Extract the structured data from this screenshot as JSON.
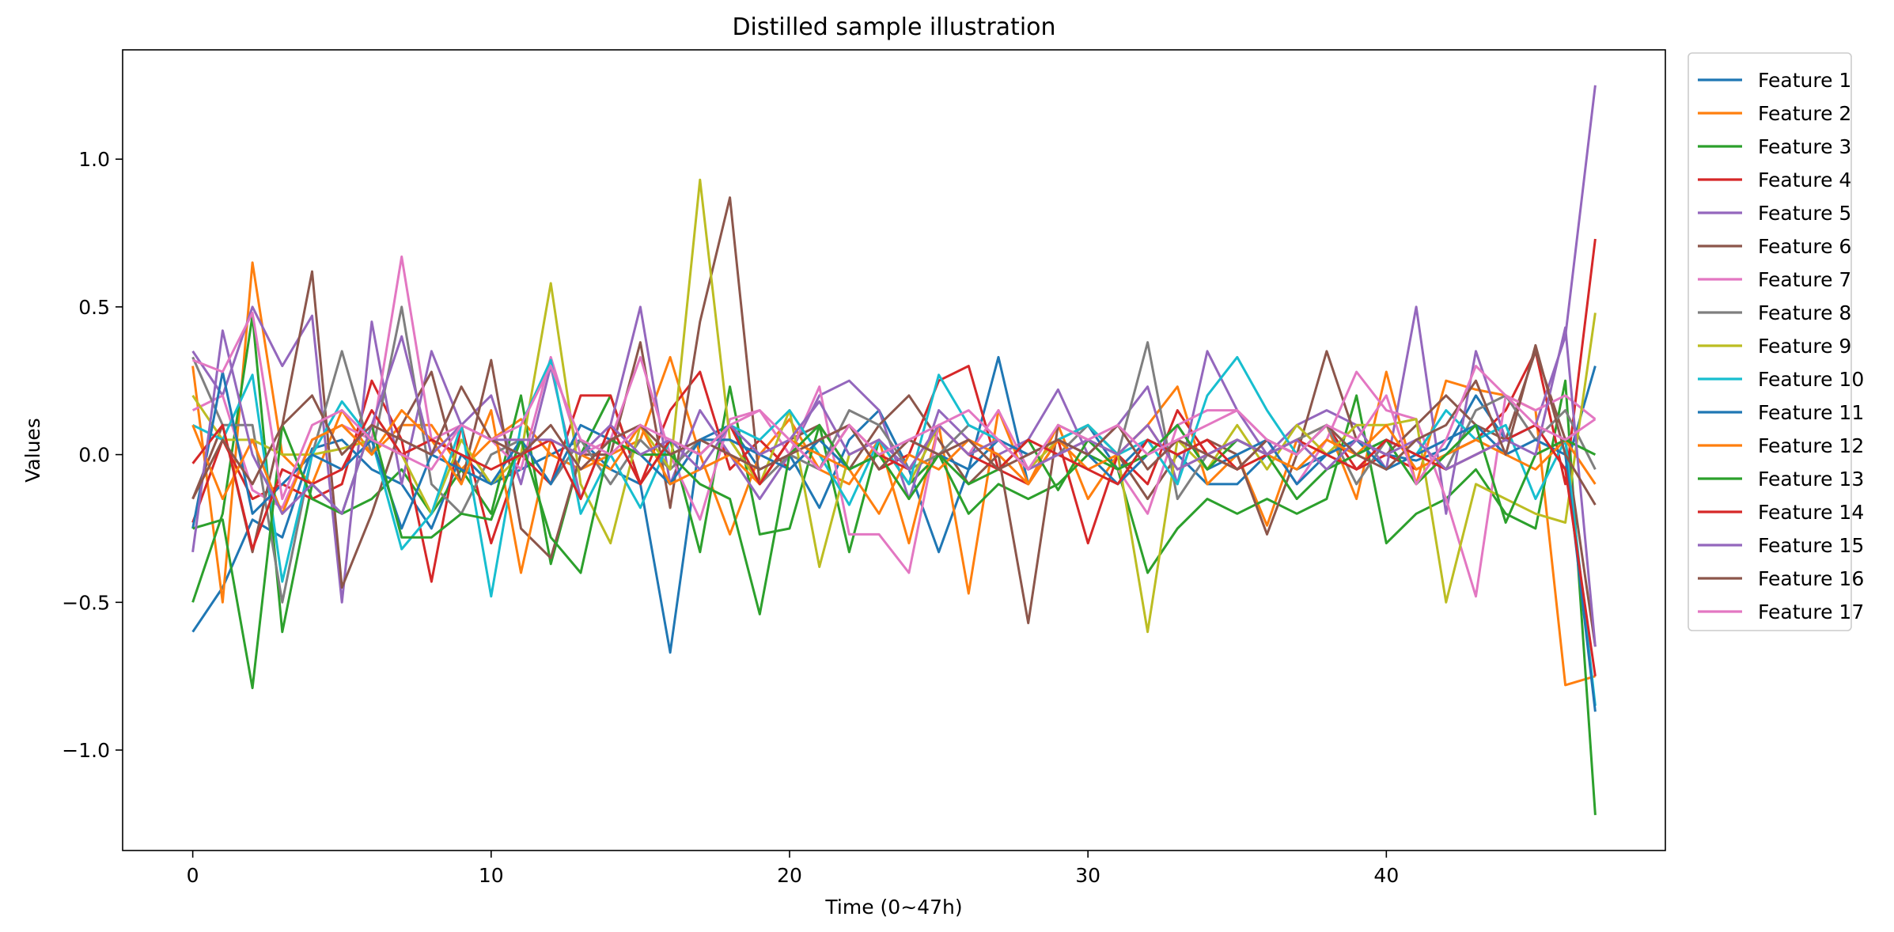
{
  "chart_data": {
    "type": "line",
    "title": "Distilled sample illustration",
    "xlabel": "Time (0~47h)",
    "ylabel": "Values",
    "xlim": [
      -2.35,
      49.35
    ],
    "ylim": [
      -1.34,
      1.37
    ],
    "x_ticks": [
      0,
      10,
      20,
      30,
      40
    ],
    "x_tick_labels": [
      "0",
      "10",
      "20",
      "30",
      "40"
    ],
    "y_ticks": [
      -1.0,
      -0.5,
      0.0,
      0.5,
      1.0
    ],
    "y_tick_labels": [
      "−1.0",
      "−0.5",
      "0.0",
      "0.5",
      "1.0"
    ],
    "grid": false,
    "legend_position": "outside-right-top",
    "x": [
      0,
      1,
      2,
      3,
      4,
      5,
      6,
      7,
      8,
      9,
      10,
      11,
      12,
      13,
      14,
      15,
      16,
      17,
      18,
      19,
      20,
      21,
      22,
      23,
      24,
      25,
      26,
      27,
      28,
      29,
      30,
      31,
      32,
      33,
      34,
      35,
      36,
      37,
      38,
      39,
      40,
      41,
      42,
      43,
      44,
      45,
      46,
      47
    ],
    "series": [
      {
        "name": "Feature 1",
        "color": "#1f77b4",
        "values": [
          -0.6,
          -0.45,
          -0.22,
          -0.28,
          0.02,
          0.05,
          -0.05,
          -0.1,
          -0.25,
          0.0,
          -0.1,
          -0.05,
          0.0,
          0.05,
          -0.05,
          -0.1,
          -0.67,
          0.05,
          0.1,
          -0.05,
          0.0,
          -0.18,
          0.05,
          0.15,
          -0.05,
          -0.33,
          -0.05,
          0.33,
          -0.1,
          0.05,
          0.1,
          -0.05,
          0.05,
          0.0,
          -0.1,
          -0.1,
          0.0,
          -0.05,
          0.0,
          0.05,
          0.0,
          -0.02,
          0.02,
          0.2,
          0.05,
          0.1,
          -0.05,
          0.3
        ]
      },
      {
        "name": "Feature 2",
        "color": "#ff7f0e",
        "values": [
          0.3,
          -0.5,
          0.65,
          0.0,
          -0.1,
          0.15,
          0.0,
          0.1,
          0.1,
          -0.05,
          0.05,
          0.12,
          0.0,
          -0.05,
          0.0,
          0.05,
          0.33,
          0.0,
          -0.27,
          0.0,
          0.12,
          -0.05,
          -0.1,
          0.05,
          -0.3,
          0.1,
          -0.47,
          0.15,
          -0.1,
          0.1,
          -0.15,
          0.0,
          0.1,
          0.23,
          -0.1,
          0.0,
          -0.24,
          0.05,
          0.1,
          -0.15,
          0.28,
          -0.1,
          0.25,
          0.22,
          0.2,
          0.15,
          -0.78,
          -0.75
        ]
      },
      {
        "name": "Feature 3",
        "color": "#2ca02c",
        "values": [
          -0.5,
          -0.2,
          0.47,
          -0.6,
          -0.1,
          -0.2,
          -0.15,
          -0.05,
          -0.2,
          -0.05,
          -0.2,
          0.2,
          -0.37,
          0.0,
          0.2,
          -0.1,
          0.05,
          -0.33,
          0.23,
          -0.27,
          -0.25,
          0.1,
          -0.33,
          0.05,
          -0.1,
          0.0,
          -0.2,
          -0.1,
          -0.15,
          -0.1,
          0.0,
          -0.05,
          -0.4,
          -0.25,
          -0.15,
          -0.2,
          -0.15,
          -0.2,
          -0.15,
          0.2,
          -0.3,
          -0.2,
          -0.15,
          -0.05,
          -0.2,
          -0.25,
          0.25,
          -1.22
        ]
      },
      {
        "name": "Feature 4",
        "color": "#d62728",
        "values": [
          -0.23,
          0.05,
          -0.15,
          -0.1,
          -0.15,
          -0.1,
          0.25,
          0.05,
          -0.43,
          0.1,
          -0.3,
          0.0,
          -0.1,
          0.2,
          0.2,
          -0.1,
          0.15,
          0.28,
          -0.05,
          0.05,
          -0.05,
          0.05,
          0.1,
          -0.05,
          0.0,
          0.25,
          0.3,
          -0.05,
          -0.1,
          0.05,
          -0.3,
          0.0,
          -0.1,
          0.15,
          0.0,
          -0.05,
          0.05,
          0.0,
          0.1,
          -0.05,
          0.0,
          -0.05,
          0.0,
          0.05,
          0.15,
          0.35,
          -0.1,
          0.73
        ]
      },
      {
        "name": "Feature 5",
        "color": "#9467bd",
        "values": [
          0.35,
          0.2,
          0.5,
          0.3,
          0.47,
          -0.5,
          0.45,
          -0.1,
          0.35,
          0.1,
          0.2,
          -0.1,
          0.3,
          -0.15,
          0.1,
          0.5,
          -0.1,
          0.15,
          0.0,
          -0.15,
          0.0,
          0.2,
          0.25,
          0.15,
          -0.15,
          0.15,
          0.05,
          0.0,
          0.05,
          0.22,
          0.0,
          0.1,
          0.23,
          -0.1,
          0.35,
          0.15,
          0.0,
          0.1,
          0.15,
          0.1,
          -0.05,
          0.5,
          -0.2,
          0.35,
          0.05,
          0.1,
          0.4,
          1.25
        ]
      },
      {
        "name": "Feature 6",
        "color": "#8c564b",
        "values": [
          -0.15,
          0.1,
          -0.33,
          0.1,
          0.62,
          -0.45,
          -0.2,
          0.1,
          0.28,
          -0.1,
          0.32,
          -0.25,
          -0.35,
          0.0,
          0.0,
          0.38,
          -0.18,
          0.45,
          0.87,
          -0.1,
          0.05,
          0.1,
          -0.05,
          0.1,
          0.2,
          0.05,
          -0.1,
          0.0,
          -0.57,
          0.1,
          0.05,
          0.0,
          -0.15,
          0.0,
          0.05,
          0.0,
          -0.27,
          0.0,
          0.35,
          0.05,
          0.0,
          0.1,
          0.2,
          0.1,
          0.05,
          0.35,
          0.05,
          -0.65
        ]
      },
      {
        "name": "Feature 7",
        "color": "#e377c2",
        "values": [
          0.15,
          0.2,
          -0.12,
          -0.18,
          0.05,
          0.1,
          0.05,
          0.67,
          0.05,
          0.1,
          0.05,
          -0.05,
          0.33,
          0.0,
          0.05,
          0.33,
          0.0,
          -0.22,
          0.12,
          0.15,
          0.0,
          0.23,
          -0.27,
          -0.27,
          -0.4,
          0.1,
          0.0,
          0.15,
          -0.05,
          0.0,
          0.05,
          -0.05,
          -0.2,
          0.1,
          0.15,
          0.15,
          0.05,
          -0.1,
          0.05,
          0.28,
          0.15,
          0.12,
          -0.15,
          -0.48,
          0.2,
          0.15,
          0.2,
          0.12
        ]
      },
      {
        "name": "Feature 8",
        "color": "#7f7f7f",
        "values": [
          0.33,
          0.1,
          0.1,
          -0.5,
          0.0,
          0.35,
          0.0,
          0.5,
          -0.1,
          -0.2,
          0.0,
          0.05,
          -0.1,
          0.05,
          -0.1,
          0.05,
          -0.05,
          0.05,
          0.05,
          -0.1,
          0.0,
          -0.05,
          0.15,
          0.1,
          -0.05,
          0.0,
          0.1,
          0.05,
          -0.05,
          0.0,
          0.1,
          0.0,
          0.38,
          -0.15,
          0.0,
          0.05,
          0.0,
          0.05,
          0.1,
          -0.1,
          0.05,
          0.0,
          -0.05,
          0.15,
          0.2,
          0.05,
          0.15,
          -0.05
        ]
      },
      {
        "name": "Feature 9",
        "color": "#bcbd22",
        "values": [
          0.2,
          0.05,
          0.05,
          0.0,
          0.0,
          0.02,
          0.05,
          0.0,
          -0.2,
          0.05,
          -0.1,
          0.0,
          0.58,
          -0.1,
          -0.3,
          0.1,
          -0.05,
          0.93,
          0.05,
          -0.1,
          0.15,
          -0.38,
          0.0,
          0.05,
          -0.1,
          0.1,
          0.0,
          0.05,
          -0.05,
          0.05,
          0.1,
          0.0,
          -0.6,
          0.05,
          -0.05,
          0.1,
          -0.05,
          0.1,
          0.0,
          0.1,
          0.1,
          0.12,
          -0.5,
          -0.1,
          -0.15,
          -0.2,
          -0.23,
          0.48
        ]
      },
      {
        "name": "Feature 10",
        "color": "#17becf",
        "values": [
          0.1,
          0.05,
          0.27,
          -0.43,
          0.0,
          0.18,
          0.05,
          -0.32,
          -0.2,
          0.1,
          -0.48,
          0.1,
          0.32,
          -0.2,
          0.0,
          -0.18,
          0.05,
          0.0,
          0.1,
          0.05,
          0.15,
          0.0,
          -0.17,
          0.05,
          -0.1,
          0.27,
          0.1,
          0.05,
          0.0,
          0.05,
          0.1,
          0.0,
          0.05,
          -0.1,
          0.2,
          0.33,
          0.15,
          0.0,
          0.1,
          0.0,
          0.05,
          0.0,
          0.15,
          0.05,
          0.1,
          -0.15,
          0.05,
          -0.85
        ]
      },
      {
        "name": "Feature 11",
        "color": "#1f77b4",
        "values": [
          -0.25,
          0.28,
          -0.2,
          -0.1,
          0.0,
          -0.05,
          0.05,
          -0.25,
          0.0,
          -0.05,
          -0.1,
          0.05,
          -0.1,
          0.1,
          0.05,
          0.0,
          -0.1,
          0.05,
          0.05,
          0.0,
          -0.05,
          0.05,
          -0.05,
          0.0,
          0.05,
          0.0,
          -0.05,
          0.05,
          0.0,
          0.05,
          0.0,
          -0.1,
          0.0,
          0.1,
          -0.05,
          0.0,
          0.05,
          -0.1,
          0.0,
          0.05,
          -0.05,
          0.0,
          0.05,
          0.1,
          0.0,
          0.05,
          0.0,
          -0.87
        ]
      },
      {
        "name": "Feature 12",
        "color": "#ff7f0e",
        "values": [
          0.1,
          -0.15,
          0.05,
          -0.2,
          0.05,
          0.1,
          0.0,
          0.15,
          0.05,
          -0.1,
          0.15,
          -0.4,
          0.05,
          0.0,
          -0.05,
          0.1,
          -0.1,
          -0.05,
          0.0,
          -0.1,
          0.05,
          0.0,
          -0.05,
          -0.2,
          0.0,
          -0.05,
          0.05,
          0.0,
          -0.1,
          0.05,
          -0.05,
          0.0,
          0.1,
          -0.05,
          0.0,
          0.05,
          0.0,
          -0.05,
          0.05,
          0.0,
          0.1,
          -0.05,
          0.0,
          0.05,
          0.0,
          -0.05,
          0.05,
          -0.1
        ]
      },
      {
        "name": "Feature 13",
        "color": "#2ca02c",
        "values": [
          -0.25,
          -0.22,
          -0.79,
          0.1,
          -0.15,
          -0.2,
          0.1,
          -0.28,
          -0.28,
          -0.2,
          -0.22,
          0.05,
          -0.28,
          -0.4,
          0.05,
          0.0,
          0.0,
          -0.1,
          -0.15,
          -0.54,
          0.0,
          0.1,
          -0.05,
          0.0,
          -0.15,
          0.0,
          -0.1,
          -0.05,
          0.05,
          -0.12,
          0.05,
          -0.05,
          0.0,
          0.1,
          -0.05,
          0.05,
          0.0,
          -0.15,
          -0.05,
          0.0,
          0.05,
          -0.1,
          0.0,
          0.1,
          -0.23,
          0.0,
          0.05,
          0.0
        ]
      },
      {
        "name": "Feature 14",
        "color": "#d62728",
        "values": [
          -0.03,
          0.1,
          -0.32,
          -0.05,
          -0.1,
          -0.05,
          0.15,
          0.0,
          0.05,
          0.0,
          -0.05,
          0.0,
          0.05,
          -0.15,
          0.1,
          -0.1,
          0.05,
          0.0,
          0.1,
          -0.1,
          0.05,
          -0.05,
          0.1,
          0.0,
          -0.05,
          0.1,
          0.0,
          -0.05,
          0.05,
          0.0,
          -0.05,
          -0.1,
          0.05,
          0.0,
          0.05,
          -0.05,
          0.0,
          0.05,
          0.0,
          -0.05,
          0.05,
          0.0,
          -0.05,
          0.0,
          0.05,
          0.1,
          -0.05,
          -0.75
        ]
      },
      {
        "name": "Feature 15",
        "color": "#9467bd",
        "values": [
          -0.33,
          0.42,
          0.0,
          -0.2,
          -0.1,
          -0.2,
          0.1,
          0.4,
          0.0,
          0.1,
          0.05,
          0.05,
          0.05,
          0.0,
          0.1,
          0.0,
          0.05,
          -0.05,
          0.1,
          0.0,
          0.05,
          0.18,
          0.0,
          0.05,
          -0.05,
          0.1,
          0.0,
          0.05,
          -0.05,
          0.0,
          0.05,
          0.0,
          0.1,
          -0.05,
          0.0,
          0.05,
          0.0,
          0.05,
          -0.05,
          0.05,
          0.0,
          0.05,
          -0.05,
          0.0,
          0.05,
          0.0,
          0.43,
          -0.65
        ]
      },
      {
        "name": "Feature 16",
        "color": "#8c564b",
        "values": [
          -0.15,
          0.05,
          -0.1,
          0.1,
          0.2,
          0.0,
          0.1,
          0.05,
          0.0,
          0.23,
          0.05,
          0.0,
          0.1,
          -0.05,
          0.05,
          0.1,
          0.0,
          0.05,
          0.0,
          -0.05,
          0.0,
          0.05,
          0.1,
          -0.05,
          0.05,
          0.0,
          0.05,
          -0.05,
          0.0,
          0.05,
          0.0,
          0.1,
          -0.05,
          0.05,
          0.0,
          -0.05,
          0.05,
          0.0,
          0.1,
          0.0,
          -0.05,
          0.05,
          0.1,
          0.25,
          0.0,
          0.37,
          0.0,
          -0.17
        ]
      },
      {
        "name": "Feature 17",
        "color": "#e377c2",
        "values": [
          0.32,
          0.28,
          0.48,
          -0.15,
          0.1,
          0.15,
          0.05,
          0.0,
          -0.05,
          0.1,
          0.05,
          0.1,
          0.3,
          0.05,
          0.0,
          0.1,
          0.05,
          0.0,
          0.1,
          0.15,
          0.05,
          -0.05,
          0.1,
          0.0,
          0.05,
          0.1,
          0.15,
          0.05,
          -0.05,
          0.1,
          0.05,
          0.1,
          0.0,
          0.05,
          0.1,
          0.15,
          0.05,
          0.0,
          0.1,
          0.05,
          0.2,
          -0.1,
          0.05,
          0.3,
          0.2,
          0.1,
          0.05,
          0.12
        ]
      }
    ]
  }
}
